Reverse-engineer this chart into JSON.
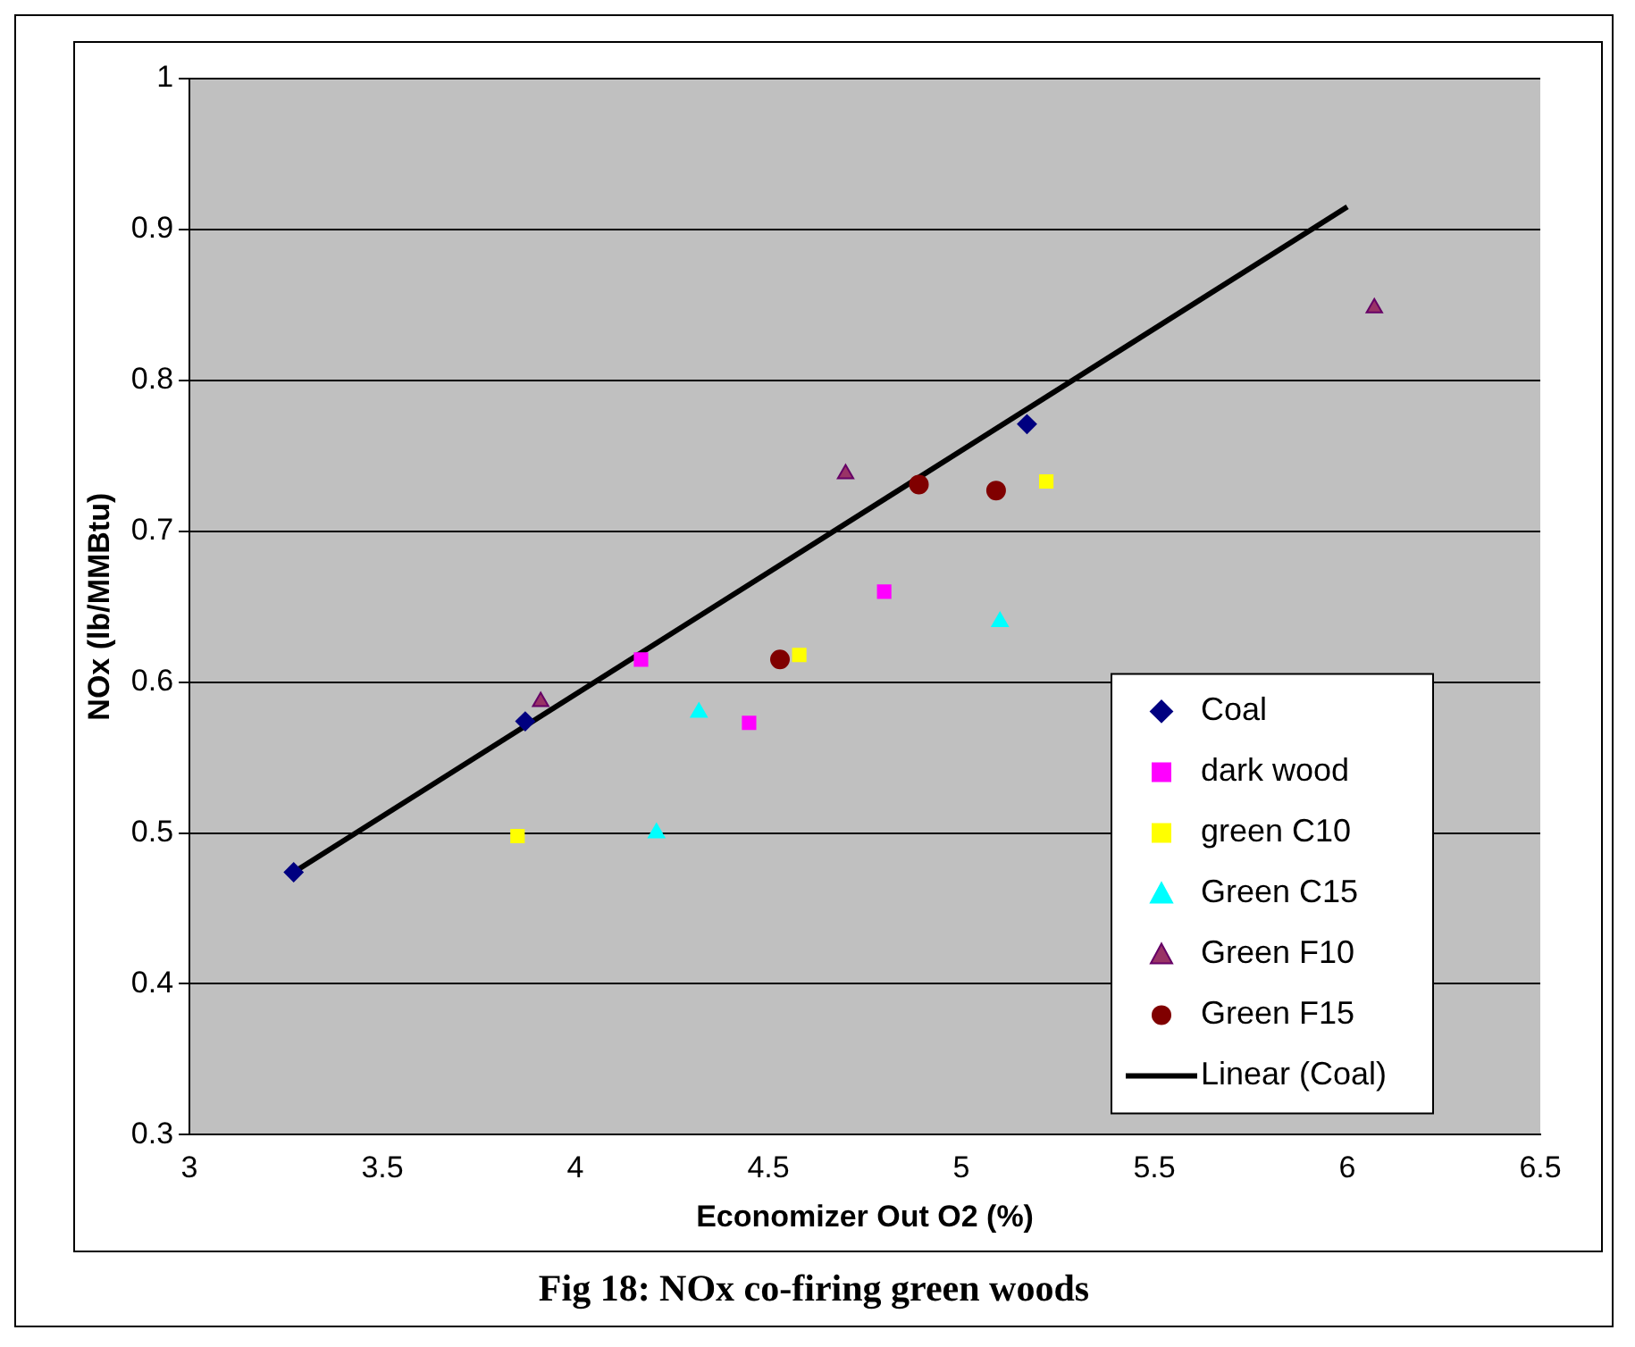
{
  "chart_data": {
    "type": "scatter",
    "title": "Fig 18: NOx co-firing green woods",
    "xlabel": "Economizer Out O2 (%)",
    "ylabel": "NOx (lb/MMBtu)",
    "xlim": [
      3,
      6.5
    ],
    "xticks": [
      3,
      3.5,
      4,
      4.5,
      5,
      5.5,
      6,
      6.5
    ],
    "ylim": [
      0.3,
      1
    ],
    "yticks": [
      0.3,
      0.4,
      0.5,
      0.6,
      0.7,
      0.8,
      0.9,
      1
    ],
    "grid": "y",
    "legend": "bottom right",
    "series": [
      {
        "name": "Coal",
        "color": "#000080",
        "marker": "diamond",
        "x": [
          3.27,
          3.87,
          5.17
        ],
        "values": [
          0.474,
          0.574,
          0.771
        ]
      },
      {
        "name": "dark wood",
        "color": "#ff00ff",
        "marker": "square",
        "x": [
          4.17,
          4.45,
          4.8
        ],
        "values": [
          0.615,
          0.573,
          0.66
        ]
      },
      {
        "name": "green C10",
        "color": "#ffff00",
        "marker": "square",
        "x": [
          3.85,
          4.58,
          5.22
        ],
        "values": [
          0.498,
          0.618,
          0.733
        ]
      },
      {
        "name": "Green C15",
        "color": "#00ffff",
        "marker": "triangle",
        "x": [
          4.21,
          4.32,
          5.1
        ],
        "values": [
          0.5,
          0.58,
          0.64
        ]
      },
      {
        "name": "Green F10",
        "color": "#993366",
        "marker": "triangle",
        "x": [
          3.91,
          4.7,
          6.07
        ],
        "values": [
          0.587,
          0.738,
          0.848
        ]
      },
      {
        "name": "Green F15",
        "color": "#800000",
        "marker": "circle",
        "x": [
          4.53,
          4.89,
          5.09
        ],
        "values": [
          0.615,
          0.731,
          0.727
        ]
      },
      {
        "name": "Linear (Coal)",
        "type": "line",
        "color": "#000000",
        "marker": "none",
        "line_style": "solid",
        "x": [
          3.27,
          6.0
        ],
        "values": [
          0.474,
          0.915
        ]
      }
    ]
  }
}
